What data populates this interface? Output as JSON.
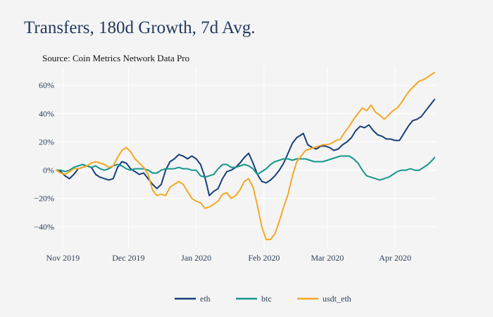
{
  "chart_data": {
    "type": "line",
    "title": "Transfers, 180d Growth, 7d Avg.",
    "subtitle": "Source: Coin Metrics Network Data Pro",
    "xlabel": "",
    "ylabel": "",
    "x_range": [
      "2019-10-29",
      "2020-04-20"
    ],
    "ylim": [
      -55,
      73
    ],
    "y_ticks": [
      -40,
      -20,
      0,
      20,
      40,
      60
    ],
    "y_tick_labels": [
      "−40%",
      "−20%",
      "0%",
      "20%",
      "40%",
      "60%"
    ],
    "x_ticks": [
      "2019-11-01",
      "2019-12-01",
      "2020-01-01",
      "2020-02-01",
      "2020-03-01",
      "2020-04-01"
    ],
    "x_tick_labels": [
      "Nov 2019",
      "Dec 2019",
      "Jan 2020",
      "Feb 2020",
      "Mar 2020",
      "Apr 2020"
    ],
    "grid": true,
    "legend_position": "bottom-center",
    "series": [
      {
        "name": "eth",
        "color": "#173f79",
        "points": [
          [
            "2019-10-29",
            0
          ],
          [
            "2019-10-31",
            -1
          ],
          [
            "2019-11-02",
            -4
          ],
          [
            "2019-11-04",
            -6
          ],
          [
            "2019-11-06",
            -3
          ],
          [
            "2019-11-08",
            1
          ],
          [
            "2019-11-10",
            2
          ],
          [
            "2019-11-12",
            3
          ],
          [
            "2019-11-14",
            2
          ],
          [
            "2019-11-16",
            -3
          ],
          [
            "2019-11-18",
            -5
          ],
          [
            "2019-11-20",
            -6
          ],
          [
            "2019-11-22",
            -7
          ],
          [
            "2019-11-24",
            -6
          ],
          [
            "2019-11-26",
            2
          ],
          [
            "2019-11-28",
            6
          ],
          [
            "2019-11-30",
            5
          ],
          [
            "2019-12-02",
            1
          ],
          [
            "2019-12-04",
            -1
          ],
          [
            "2019-12-06",
            -3
          ],
          [
            "2019-12-08",
            -2
          ],
          [
            "2019-12-10",
            -6
          ],
          [
            "2019-12-12",
            -10
          ],
          [
            "2019-12-14",
            -13
          ],
          [
            "2019-12-16",
            -10
          ],
          [
            "2019-12-18",
            0
          ],
          [
            "2019-12-20",
            6
          ],
          [
            "2019-12-22",
            8
          ],
          [
            "2019-12-24",
            11
          ],
          [
            "2019-12-26",
            10
          ],
          [
            "2019-12-28",
            8
          ],
          [
            "2019-12-30",
            10
          ],
          [
            "2020-01-01",
            8
          ],
          [
            "2020-01-03",
            4
          ],
          [
            "2020-01-05",
            -5
          ],
          [
            "2020-01-07",
            -18
          ],
          [
            "2020-01-09",
            -15
          ],
          [
            "2020-01-11",
            -13
          ],
          [
            "2020-01-13",
            -6
          ],
          [
            "2020-01-15",
            -1
          ],
          [
            "2020-01-17",
            0
          ],
          [
            "2020-01-19",
            2
          ],
          [
            "2020-01-21",
            5
          ],
          [
            "2020-01-23",
            9
          ],
          [
            "2020-01-25",
            12
          ],
          [
            "2020-01-27",
            5
          ],
          [
            "2020-01-29",
            -3
          ],
          [
            "2020-01-31",
            -8
          ],
          [
            "2020-02-02",
            -9
          ],
          [
            "2020-02-04",
            -7
          ],
          [
            "2020-02-06",
            -4
          ],
          [
            "2020-02-08",
            0
          ],
          [
            "2020-02-10",
            5
          ],
          [
            "2020-02-12",
            12
          ],
          [
            "2020-02-14",
            19
          ],
          [
            "2020-02-16",
            23
          ],
          [
            "2020-02-18",
            25
          ],
          [
            "2020-02-19",
            26
          ],
          [
            "2020-02-21",
            18
          ],
          [
            "2020-02-23",
            16
          ],
          [
            "2020-02-25",
            15
          ],
          [
            "2020-02-27",
            17
          ],
          [
            "2020-02-29",
            17
          ],
          [
            "2020-03-02",
            16
          ],
          [
            "2020-03-04",
            14
          ],
          [
            "2020-03-06",
            15
          ],
          [
            "2020-03-08",
            18
          ],
          [
            "2020-03-10",
            20
          ],
          [
            "2020-03-12",
            23
          ],
          [
            "2020-03-14",
            28
          ],
          [
            "2020-03-16",
            31
          ],
          [
            "2020-03-18",
            30
          ],
          [
            "2020-03-20",
            32
          ],
          [
            "2020-03-22",
            28
          ],
          [
            "2020-03-24",
            25
          ],
          [
            "2020-03-26",
            24
          ],
          [
            "2020-03-28",
            22
          ],
          [
            "2020-03-30",
            22
          ],
          [
            "2020-04-01",
            21
          ],
          [
            "2020-04-03",
            21
          ],
          [
            "2020-04-05",
            26
          ],
          [
            "2020-04-07",
            31
          ],
          [
            "2020-04-09",
            35
          ],
          [
            "2020-04-11",
            36
          ],
          [
            "2020-04-13",
            38
          ],
          [
            "2020-04-15",
            42
          ],
          [
            "2020-04-17",
            46
          ],
          [
            "2020-04-19",
            50
          ]
        ]
      },
      {
        "name": "btc",
        "color": "#17958c",
        "points": [
          [
            "2019-10-29",
            0
          ],
          [
            "2019-10-31",
            0
          ],
          [
            "2019-11-02",
            -1
          ],
          [
            "2019-11-04",
            0
          ],
          [
            "2019-11-06",
            2
          ],
          [
            "2019-11-08",
            3
          ],
          [
            "2019-11-10",
            4
          ],
          [
            "2019-11-12",
            3
          ],
          [
            "2019-11-14",
            2
          ],
          [
            "2019-11-16",
            3
          ],
          [
            "2019-11-18",
            1
          ],
          [
            "2019-11-20",
            0
          ],
          [
            "2019-11-22",
            1
          ],
          [
            "2019-11-24",
            3
          ],
          [
            "2019-11-26",
            4
          ],
          [
            "2019-11-28",
            3
          ],
          [
            "2019-11-30",
            1
          ],
          [
            "2019-12-02",
            0
          ],
          [
            "2019-12-04",
            1
          ],
          [
            "2019-12-06",
            1
          ],
          [
            "2019-12-08",
            1
          ],
          [
            "2019-12-10",
            0
          ],
          [
            "2019-12-12",
            -2
          ],
          [
            "2019-12-14",
            -2
          ],
          [
            "2019-12-16",
            0
          ],
          [
            "2019-12-18",
            1
          ],
          [
            "2019-12-20",
            1
          ],
          [
            "2019-12-22",
            1
          ],
          [
            "2019-12-24",
            2
          ],
          [
            "2019-12-26",
            1
          ],
          [
            "2019-12-28",
            1
          ],
          [
            "2019-12-30",
            0
          ],
          [
            "2020-01-01",
            0
          ],
          [
            "2020-01-03",
            -4
          ],
          [
            "2020-01-05",
            -5
          ],
          [
            "2020-01-07",
            -4
          ],
          [
            "2020-01-09",
            -3
          ],
          [
            "2020-01-11",
            1
          ],
          [
            "2020-01-13",
            4
          ],
          [
            "2020-01-15",
            4
          ],
          [
            "2020-01-17",
            2
          ],
          [
            "2020-01-19",
            2
          ],
          [
            "2020-01-21",
            3
          ],
          [
            "2020-01-23",
            4
          ],
          [
            "2020-01-25",
            3
          ],
          [
            "2020-01-27",
            1
          ],
          [
            "2020-01-29",
            -3
          ],
          [
            "2020-01-31",
            -1
          ],
          [
            "2020-02-02",
            1
          ],
          [
            "2020-02-04",
            4
          ],
          [
            "2020-02-06",
            6
          ],
          [
            "2020-02-08",
            7
          ],
          [
            "2020-02-10",
            8
          ],
          [
            "2020-02-12",
            8
          ],
          [
            "2020-02-14",
            7
          ],
          [
            "2020-02-16",
            8
          ],
          [
            "2020-02-18",
            8
          ],
          [
            "2020-02-20",
            8
          ],
          [
            "2020-02-22",
            7
          ],
          [
            "2020-02-24",
            6
          ],
          [
            "2020-02-26",
            6
          ],
          [
            "2020-02-28",
            6
          ],
          [
            "2020-03-01",
            7
          ],
          [
            "2020-03-03",
            8
          ],
          [
            "2020-03-05",
            9
          ],
          [
            "2020-03-07",
            10
          ],
          [
            "2020-03-09",
            10
          ],
          [
            "2020-03-11",
            10
          ],
          [
            "2020-03-13",
            8
          ],
          [
            "2020-03-15",
            5
          ],
          [
            "2020-03-17",
            0
          ],
          [
            "2020-03-19",
            -4
          ],
          [
            "2020-03-21",
            -5
          ],
          [
            "2020-03-23",
            -6
          ],
          [
            "2020-03-25",
            -7
          ],
          [
            "2020-03-27",
            -6
          ],
          [
            "2020-03-29",
            -5
          ],
          [
            "2020-03-31",
            -3
          ],
          [
            "2020-04-02",
            -1
          ],
          [
            "2020-04-04",
            0
          ],
          [
            "2020-04-06",
            0
          ],
          [
            "2020-04-08",
            1
          ],
          [
            "2020-04-10",
            0
          ],
          [
            "2020-04-12",
            0
          ],
          [
            "2020-04-14",
            2
          ],
          [
            "2020-04-16",
            4
          ],
          [
            "2020-04-18",
            7
          ],
          [
            "2020-04-19",
            9
          ]
        ]
      },
      {
        "name": "usdt_eth",
        "color": "#f4a822",
        "points": [
          [
            "2019-10-29",
            0
          ],
          [
            "2019-10-31",
            -2
          ],
          [
            "2019-11-02",
            -3
          ],
          [
            "2019-11-04",
            -1
          ],
          [
            "2019-11-06",
            1
          ],
          [
            "2019-11-08",
            1
          ],
          [
            "2019-11-10",
            2
          ],
          [
            "2019-11-12",
            3
          ],
          [
            "2019-11-14",
            5
          ],
          [
            "2019-11-16",
            6
          ],
          [
            "2019-11-18",
            5
          ],
          [
            "2019-11-20",
            4
          ],
          [
            "2019-11-22",
            2
          ],
          [
            "2019-11-24",
            3
          ],
          [
            "2019-11-26",
            9
          ],
          [
            "2019-11-28",
            14
          ],
          [
            "2019-11-30",
            16
          ],
          [
            "2019-12-02",
            13
          ],
          [
            "2019-12-04",
            8
          ],
          [
            "2019-12-06",
            5
          ],
          [
            "2019-12-08",
            2
          ],
          [
            "2019-12-10",
            -3
          ],
          [
            "2019-12-12",
            -14
          ],
          [
            "2019-12-14",
            -18
          ],
          [
            "2019-12-16",
            -17
          ],
          [
            "2019-12-18",
            -18
          ],
          [
            "2019-12-20",
            -12
          ],
          [
            "2019-12-22",
            -10
          ],
          [
            "2019-12-24",
            -8
          ],
          [
            "2019-12-26",
            -10
          ],
          [
            "2019-12-28",
            -15
          ],
          [
            "2019-12-30",
            -20
          ],
          [
            "2020-01-01",
            -22
          ],
          [
            "2020-01-03",
            -23
          ],
          [
            "2020-01-05",
            -27
          ],
          [
            "2020-01-07",
            -26
          ],
          [
            "2020-01-09",
            -24
          ],
          [
            "2020-01-11",
            -22
          ],
          [
            "2020-01-13",
            -17
          ],
          [
            "2020-01-15",
            -16
          ],
          [
            "2020-01-17",
            -20
          ],
          [
            "2020-01-19",
            -18
          ],
          [
            "2020-01-21",
            -14
          ],
          [
            "2020-01-23",
            -8
          ],
          [
            "2020-01-25",
            -6
          ],
          [
            "2020-01-27",
            -12
          ],
          [
            "2020-01-29",
            -25
          ],
          [
            "2020-01-31",
            -40
          ],
          [
            "2020-02-02",
            -49
          ],
          [
            "2020-02-04",
            -49
          ],
          [
            "2020-02-06",
            -45
          ],
          [
            "2020-02-08",
            -36
          ],
          [
            "2020-02-10",
            -26
          ],
          [
            "2020-02-12",
            -17
          ],
          [
            "2020-02-14",
            -4
          ],
          [
            "2020-02-16",
            6
          ],
          [
            "2020-02-18",
            10
          ],
          [
            "2020-02-20",
            14
          ],
          [
            "2020-02-22",
            15
          ],
          [
            "2020-02-24",
            16
          ],
          [
            "2020-02-26",
            17
          ],
          [
            "2020-02-28",
            18
          ],
          [
            "2020-03-01",
            18
          ],
          [
            "2020-03-03",
            19
          ],
          [
            "2020-03-05",
            21
          ],
          [
            "2020-03-07",
            22
          ],
          [
            "2020-03-09",
            27
          ],
          [
            "2020-03-11",
            31
          ],
          [
            "2020-03-13",
            36
          ],
          [
            "2020-03-15",
            40
          ],
          [
            "2020-03-17",
            44
          ],
          [
            "2020-03-19",
            42
          ],
          [
            "2020-03-21",
            46
          ],
          [
            "2020-03-23",
            41
          ],
          [
            "2020-03-25",
            39
          ],
          [
            "2020-03-27",
            36
          ],
          [
            "2020-03-29",
            39
          ],
          [
            "2020-03-31",
            42
          ],
          [
            "2020-04-02",
            44
          ],
          [
            "2020-04-04",
            48
          ],
          [
            "2020-04-06",
            53
          ],
          [
            "2020-04-08",
            57
          ],
          [
            "2020-04-10",
            60
          ],
          [
            "2020-04-12",
            63
          ],
          [
            "2020-04-14",
            64
          ],
          [
            "2020-04-16",
            66
          ],
          [
            "2020-04-18",
            68
          ],
          [
            "2020-04-19",
            69
          ]
        ]
      }
    ]
  }
}
